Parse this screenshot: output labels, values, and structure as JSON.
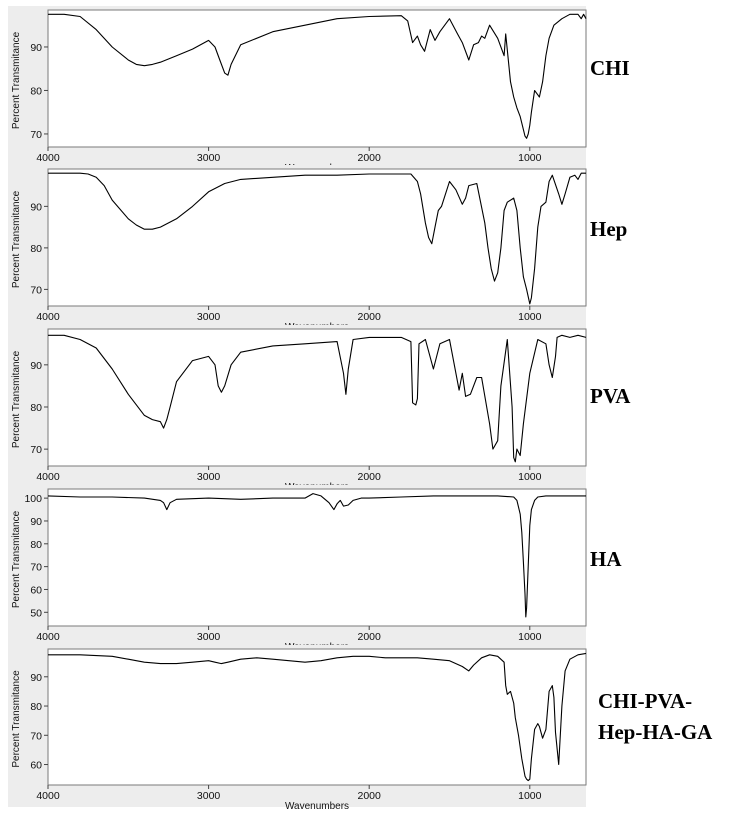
{
  "chart_data": [
    {
      "type": "line",
      "sample_label": "CHI",
      "xlabel": "Wavenumbers",
      "ylabel": "Percent Transmitance",
      "xlim": [
        4000,
        650
      ],
      "ylim": [
        67,
        98.5
      ],
      "xticks": [
        4000,
        3000,
        2000,
        1000
      ],
      "yticks": [
        70,
        80,
        90
      ],
      "series": [
        {
          "x": [
            4000,
            3900,
            3800,
            3700,
            3600,
            3500,
            3450,
            3400,
            3350,
            3300,
            3200,
            3100,
            3000,
            2960,
            2930,
            2900,
            2880,
            2860,
            2800,
            2600,
            2400,
            2200,
            2000,
            1800,
            1760,
            1730,
            1700,
            1680,
            1655,
            1620,
            1590,
            1560,
            1500,
            1450,
            1420,
            1380,
            1350,
            1320,
            1300,
            1280,
            1250,
            1200,
            1160,
            1150,
            1120,
            1100,
            1080,
            1060,
            1040,
            1030,
            1020,
            1010,
            1000,
            990,
            970,
            950,
            940,
            920,
            900,
            880,
            850,
            800,
            750,
            700,
            680,
            665,
            650
          ],
          "y": [
            97.5,
            97.5,
            97,
            94,
            90,
            87,
            86,
            85.7,
            86,
            86.5,
            88,
            89.5,
            91.5,
            90,
            87,
            84,
            83.5,
            86,
            90.5,
            93.5,
            95,
            96.5,
            97,
            97.2,
            96,
            91,
            92.5,
            90.5,
            89,
            94,
            91.5,
            93.5,
            96.5,
            93,
            91,
            87,
            90.5,
            91,
            92.5,
            92,
            95,
            92,
            88,
            93,
            82,
            78.5,
            76,
            74,
            71,
            69.5,
            69,
            70,
            72,
            75,
            80,
            79,
            78.5,
            82,
            88,
            92,
            95,
            96.5,
            97.5,
            97.5,
            96.5,
            97.5,
            96.5
          ]
        }
      ]
    },
    {
      "type": "line",
      "sample_label": "Hep",
      "xlabel": "Wavenumbers",
      "ylabel": "Percent Transmitance",
      "xlim": [
        4000,
        650
      ],
      "ylim": [
        66,
        99
      ],
      "xticks": [
        4000,
        3000,
        2000,
        1000
      ],
      "yticks": [
        70,
        80,
        90
      ],
      "series": [
        {
          "x": [
            4000,
            3900,
            3800,
            3750,
            3700,
            3650,
            3600,
            3500,
            3450,
            3400,
            3350,
            3300,
            3200,
            3100,
            3000,
            2900,
            2800,
            2600,
            2400,
            2200,
            2000,
            1800,
            1740,
            1700,
            1680,
            1650,
            1630,
            1610,
            1590,
            1570,
            1550,
            1500,
            1460,
            1420,
            1400,
            1380,
            1330,
            1280,
            1260,
            1240,
            1220,
            1200,
            1180,
            1160,
            1140,
            1100,
            1080,
            1060,
            1040,
            1020,
            1000,
            990,
            970,
            950,
            930,
            900,
            880,
            860,
            820,
            800,
            780,
            750,
            720,
            700,
            680,
            650
          ],
          "y": [
            98,
            98,
            98,
            97.8,
            97,
            95,
            91.5,
            87,
            85.5,
            84.5,
            84.5,
            85,
            87,
            90,
            93.5,
            95.5,
            96.5,
            97,
            97.5,
            97.5,
            97.8,
            97.8,
            97.8,
            96,
            93,
            86,
            82.5,
            81,
            85,
            89,
            90,
            96,
            94,
            90.5,
            92,
            95,
            95.5,
            86,
            80,
            75,
            72,
            74,
            80,
            89,
            91,
            92,
            89,
            80,
            73,
            70,
            66.5,
            68,
            75,
            85,
            90,
            91,
            96,
            97.5,
            93,
            90.5,
            93,
            97,
            97.5,
            96.5,
            98,
            98
          ]
        }
      ]
    },
    {
      "type": "line",
      "sample_label": "PVA",
      "xlabel": "Wavenumbers",
      "ylabel": "Percent Transmitance",
      "xlim": [
        4000,
        650
      ],
      "ylim": [
        66,
        98.5
      ],
      "xticks": [
        4000,
        3000,
        2000,
        1000
      ],
      "yticks": [
        70,
        80,
        90
      ],
      "series": [
        {
          "x": [
            4000,
            3900,
            3800,
            3700,
            3600,
            3500,
            3400,
            3350,
            3300,
            3280,
            3260,
            3240,
            3200,
            3100,
            3000,
            2960,
            2940,
            2920,
            2900,
            2860,
            2800,
            2600,
            2400,
            2200,
            2160,
            2145,
            2130,
            2100,
            2000,
            1800,
            1740,
            1730,
            1710,
            1700,
            1690,
            1650,
            1600,
            1560,
            1500,
            1440,
            1420,
            1400,
            1370,
            1330,
            1300,
            1250,
            1230,
            1200,
            1180,
            1140,
            1110,
            1100,
            1090,
            1080,
            1060,
            1040,
            1000,
            950,
            900,
            880,
            860,
            840,
            830,
            800,
            750,
            700,
            650
          ],
          "y": [
            97,
            97,
            96,
            94,
            89,
            83,
            78,
            77,
            76.5,
            75,
            77,
            80,
            86,
            91,
            92,
            90,
            85,
            83.5,
            85,
            90,
            93,
            94.5,
            95,
            95.5,
            88,
            83,
            89,
            96,
            96.5,
            96.5,
            95.5,
            81,
            80.5,
            82,
            95,
            96,
            89,
            95,
            96,
            84,
            88,
            82.5,
            83,
            87,
            87,
            76,
            70,
            72,
            85,
            96,
            80,
            68,
            67,
            70,
            68.5,
            76,
            88,
            96,
            95,
            90,
            87,
            92,
            96.5,
            97,
            96.5,
            97,
            96.5
          ]
        }
      ]
    },
    {
      "type": "line",
      "sample_label": "HA",
      "xlabel": "Wavenumbers",
      "ylabel": "Percent Transmitance",
      "xlim": [
        4000,
        650
      ],
      "ylim": [
        44,
        104
      ],
      "xticks": [
        4000,
        3000,
        2000,
        1000
      ],
      "yticks": [
        50,
        60,
        70,
        80,
        90,
        100
      ],
      "series": [
        {
          "x": [
            4000,
            3800,
            3600,
            3400,
            3300,
            3280,
            3260,
            3240,
            3200,
            3000,
            2800,
            2600,
            2400,
            2350,
            2300,
            2250,
            2220,
            2200,
            2180,
            2160,
            2130,
            2100,
            2050,
            2000,
            1800,
            1600,
            1400,
            1200,
            1100,
            1080,
            1060,
            1050,
            1040,
            1030,
            1025,
            1020,
            1010,
            1000,
            990,
            970,
            950,
            900,
            800,
            650
          ],
          "y": [
            101,
            100.5,
            100.5,
            100,
            99,
            98,
            95,
            98,
            99.5,
            100,
            99.5,
            100,
            100,
            102,
            101,
            98,
            95,
            97.5,
            99,
            96.5,
            97,
            99,
            100,
            100,
            100.5,
            101,
            101,
            101,
            100.5,
            99,
            93,
            85,
            72,
            58,
            48,
            52,
            70,
            88,
            95,
            99,
            100.5,
            101,
            101,
            101
          ]
        }
      ]
    },
    {
      "type": "line",
      "sample_label": "CHI-PVA-\nHep-HA-GA",
      "xlabel": "Wavenumbers",
      "ylabel": "Percent Transmitance",
      "xlim": [
        4000,
        650
      ],
      "ylim": [
        53,
        99.5
      ],
      "xticks": [
        4000,
        3000,
        2000,
        1000
      ],
      "yticks": [
        60,
        70,
        80,
        90
      ],
      "series": [
        {
          "x": [
            4000,
            3800,
            3600,
            3500,
            3400,
            3300,
            3200,
            3100,
            3000,
            2960,
            2920,
            2880,
            2800,
            2700,
            2600,
            2500,
            2400,
            2300,
            2200,
            2100,
            2000,
            1900,
            1800,
            1700,
            1600,
            1500,
            1420,
            1380,
            1350,
            1300,
            1250,
            1200,
            1160,
            1150,
            1140,
            1120,
            1100,
            1090,
            1070,
            1050,
            1030,
            1020,
            1010,
            1000,
            990,
            970,
            950,
            940,
            920,
            900,
            880,
            860,
            850,
            840,
            820,
            800,
            780,
            750,
            700,
            650
          ],
          "y": [
            97.5,
            97.5,
            97,
            96,
            95,
            94.5,
            94.5,
            95,
            95.5,
            95,
            94.5,
            95,
            96,
            96.5,
            96,
            95.5,
            95,
            95.5,
            96.5,
            97,
            97,
            96.5,
            96.5,
            96.5,
            96,
            95.5,
            93.5,
            92,
            94,
            96.5,
            97.5,
            97,
            95,
            87,
            84,
            85,
            81,
            76,
            70,
            62,
            56,
            55,
            54.5,
            55,
            62,
            72,
            74,
            73,
            69,
            72,
            85,
            87,
            83,
            71,
            60,
            80,
            92,
            96,
            97.5,
            98
          ]
        }
      ]
    }
  ]
}
